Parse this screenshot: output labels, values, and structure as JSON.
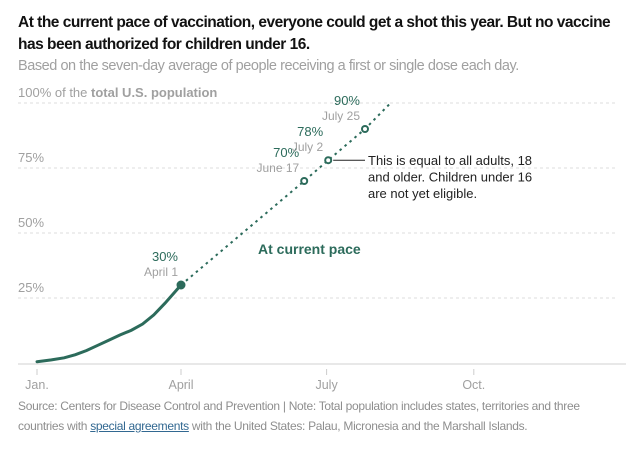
{
  "title": "At the current pace of vaccination, everyone could get a shot this year. But no vaccine has been authorized for children under 16.",
  "subtitle": "Based on the seven-day average of people receiving a first or single dose each day.",
  "footer": {
    "prefix": "Source: Centers for Disease Control and Prevention | Note: Total population includes states, territories and three countries with ",
    "link": "special agreements",
    "suffix": " with the United States: Palau, Micronesia and the Marshall Islands."
  },
  "chart_data": {
    "type": "line",
    "ylabel_prefix": "100% of the ",
    "ylabel_bold": "total U.S. population",
    "y_ticks": [
      {
        "v": 75,
        "label": "75%"
      },
      {
        "v": 50,
        "label": "50%"
      },
      {
        "v": 25,
        "label": "25%"
      }
    ],
    "ylim": [
      0,
      100
    ],
    "x_ticks": [
      {
        "date": "2021-01-01",
        "label": "Jan."
      },
      {
        "date": "2021-04-01",
        "label": "April"
      },
      {
        "date": "2021-07-01",
        "label": "July"
      },
      {
        "date": "2021-10-01",
        "label": "Oct."
      }
    ],
    "xlim": [
      "2020-12-28",
      "2021-12-31"
    ],
    "grid": true,
    "actual": [
      {
        "date": "2021-01-01",
        "value": 0.5
      },
      {
        "date": "2021-01-10",
        "value": 1.2
      },
      {
        "date": "2021-01-18",
        "value": 2
      },
      {
        "date": "2021-01-25",
        "value": 3.2
      },
      {
        "date": "2021-02-01",
        "value": 4.8
      },
      {
        "date": "2021-02-08",
        "value": 6.8
      },
      {
        "date": "2021-02-15",
        "value": 8.8
      },
      {
        "date": "2021-02-22",
        "value": 10.8
      },
      {
        "date": "2021-03-01",
        "value": 12.6
      },
      {
        "date": "2021-03-08",
        "value": 15
      },
      {
        "date": "2021-03-15",
        "value": 18.5
      },
      {
        "date": "2021-03-22",
        "value": 23
      },
      {
        "date": "2021-04-01",
        "value": 30
      }
    ],
    "projection": [
      {
        "date": "2021-04-01",
        "value": 30
      },
      {
        "date": "2021-06-17",
        "value": 70
      },
      {
        "date": "2021-07-02",
        "value": 78
      },
      {
        "date": "2021-07-25",
        "value": 90
      },
      {
        "date": "2021-08-10",
        "value": 100
      }
    ],
    "series_label": "At current pace",
    "markers": [
      {
        "date": "2021-04-01",
        "value": 30,
        "pct": "30%",
        "label": "April 1",
        "filled": true
      },
      {
        "date": "2021-06-17",
        "value": 70,
        "pct": "70%",
        "label": "June 17",
        "filled": false
      },
      {
        "date": "2021-07-02",
        "value": 78,
        "pct": "78%",
        "label": "July 2",
        "filled": false
      },
      {
        "date": "2021-07-25",
        "value": 90,
        "pct": "90%",
        "label": "July 25",
        "filled": false
      }
    ],
    "annotation": [
      "This is equal to all adults, 18",
      "and older. Children under 16",
      "are not yet eligible."
    ],
    "colors": {
      "line": "#2c6b5b",
      "grid": "#dcdcdc",
      "axis_text": "#a0a0a0"
    }
  }
}
